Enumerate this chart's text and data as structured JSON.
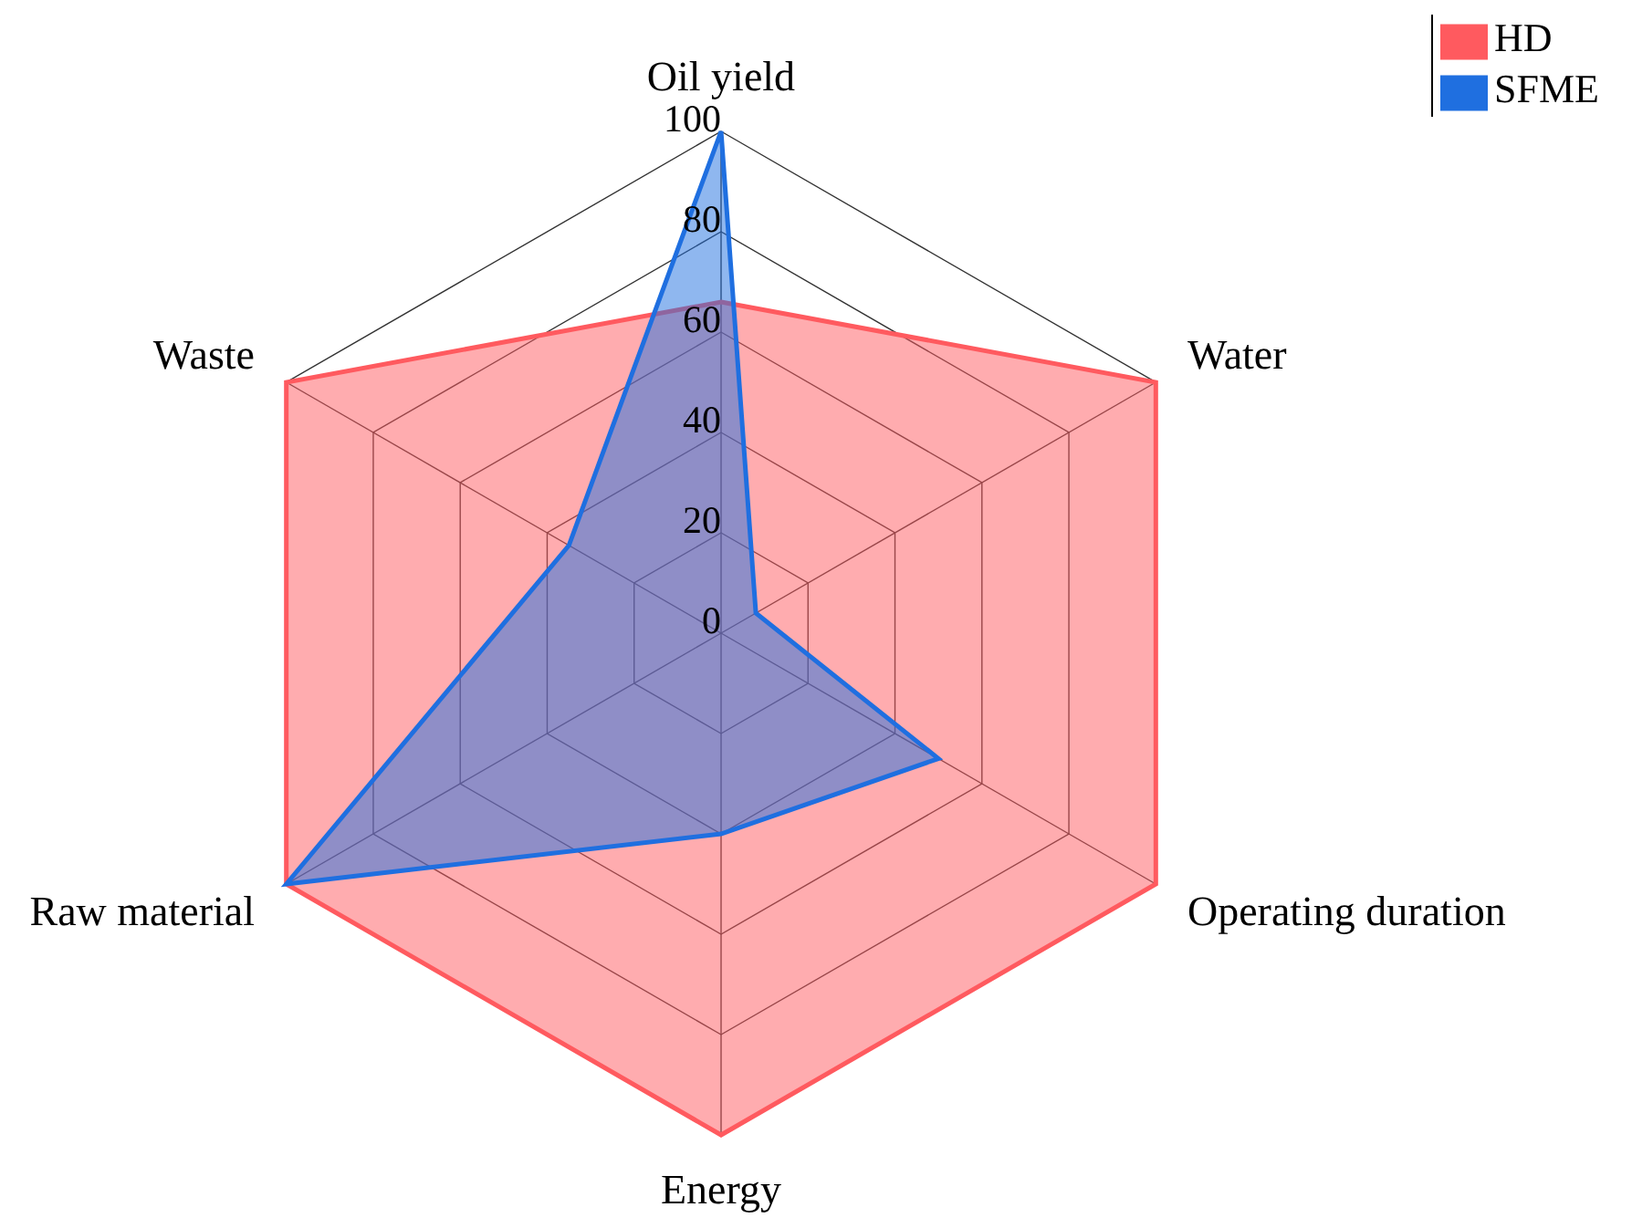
{
  "chart_data": {
    "type": "radar",
    "categories": [
      "Oil yield",
      "Water",
      "Operating duration",
      "Energy",
      "Raw material",
      "Waste"
    ],
    "series": [
      {
        "name": "HD",
        "color": "#ff5a5f",
        "values": [
          66,
          100,
          100,
          100,
          100,
          100
        ]
      },
      {
        "name": "SFME",
        "color": "#1f6fe0",
        "values": [
          100,
          8,
          50,
          40,
          100,
          35
        ]
      }
    ],
    "ylim": [
      0,
      100
    ],
    "yticks": [
      0,
      20,
      40,
      60,
      80,
      100
    ],
    "grid": true,
    "legend": "top right"
  }
}
